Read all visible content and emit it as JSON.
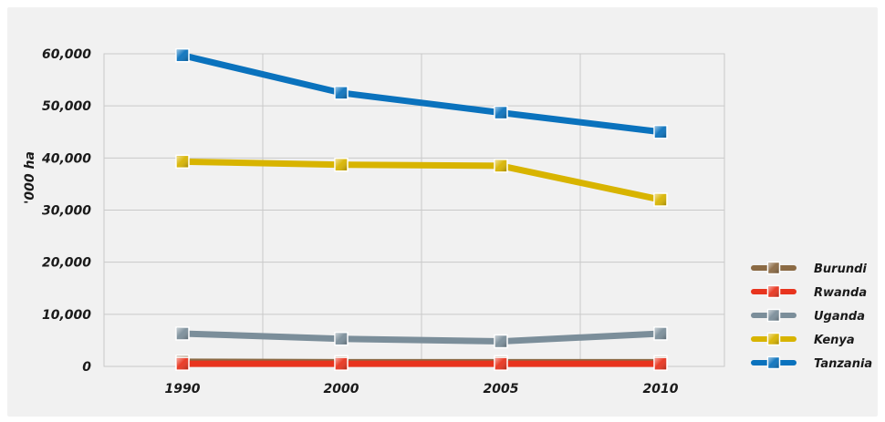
{
  "chart_data": {
    "type": "line",
    "title": "",
    "xlabel": "",
    "ylabel": "'000 ha",
    "categories": [
      "1990",
      "2000",
      "2005",
      "2010"
    ],
    "ylim": [
      0,
      60000
    ],
    "yticks": [
      0,
      10000,
      20000,
      30000,
      40000,
      50000,
      60000
    ],
    "ytick_labels": [
      "0",
      "10,000",
      "20,000",
      "30,000",
      "40,000",
      "50,000",
      "60,000"
    ],
    "grid": true,
    "legend_position": "right",
    "series": [
      {
        "name": "Burundi",
        "color": "#8b6a44",
        "values": [
          900,
          800,
          800,
          800
        ]
      },
      {
        "name": "Rwanda",
        "color": "#e8341e",
        "values": [
          500,
          500,
          500,
          500
        ]
      },
      {
        "name": "Uganda",
        "color": "#7b8e9a",
        "values": [
          6300,
          5300,
          4800,
          6300
        ]
      },
      {
        "name": "Kenya",
        "color": "#d8b400",
        "values": [
          39300,
          38700,
          38500,
          32000
        ]
      },
      {
        "name": "Tanzania",
        "color": "#0a72bd",
        "values": [
          59700,
          52500,
          48700,
          45000
        ]
      }
    ]
  }
}
